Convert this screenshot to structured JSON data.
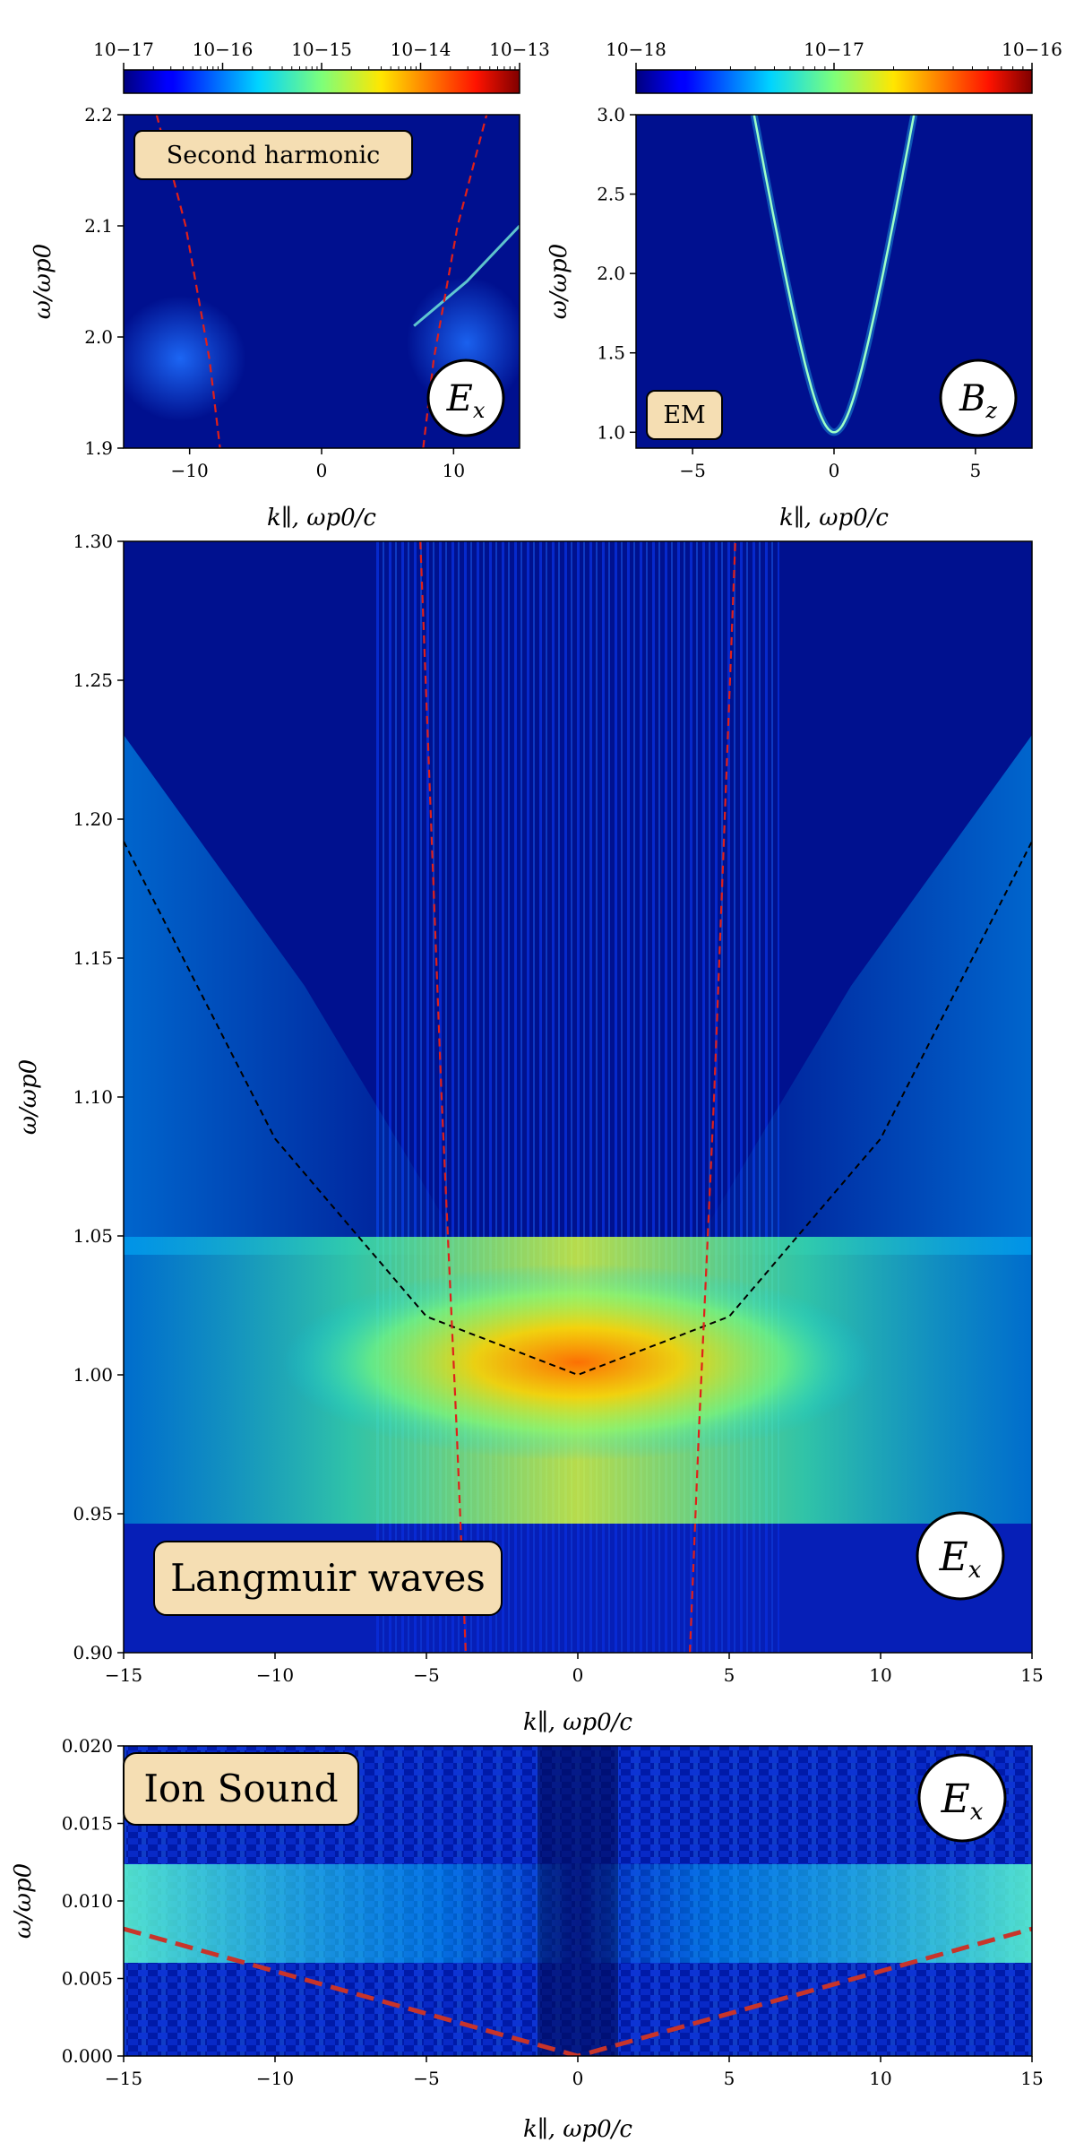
{
  "chart_data": [
    {
      "id": "second-harmonic",
      "type": "heatmap",
      "label_box": "Second harmonic",
      "field_badge": "E",
      "field_badge_sub": "x",
      "xlabel": "k∥, ωp0/c",
      "ylabel": "ω/ωp0",
      "xlim": [
        -15,
        15
      ],
      "ylim": [
        1.9,
        2.2
      ],
      "xticks": [
        "−10",
        "0",
        "10"
      ],
      "xtick_values": [
        -10,
        0,
        10
      ],
      "yticks": [
        "1.9",
        "2.0",
        "2.1",
        "2.2"
      ],
      "ytick_values": [
        1.9,
        2.0,
        2.1,
        2.2
      ],
      "colorbar": {
        "ticks": [
          "10−17",
          "10−16",
          "10−15",
          "10−14",
          "10−13"
        ],
        "log_min": -17,
        "log_max": -13
      },
      "overlay_curves": [
        {
          "style": "red-dashed",
          "x": [
            -12.5,
            -10.3,
            -8.5,
            -7.7
          ],
          "y": [
            2.2,
            2.1,
            1.98,
            1.9
          ]
        },
        {
          "style": "red-dashed",
          "x": [
            7.7,
            8.5,
            10.3,
            12.5
          ],
          "y": [
            1.9,
            1.98,
            2.1,
            2.2
          ]
        }
      ]
    },
    {
      "id": "em",
      "type": "heatmap",
      "label_box": "EM",
      "field_badge": "B",
      "field_badge_sub": "z",
      "xlabel": "k∥, ωp0/c",
      "ylabel": "ω/ωp0",
      "xlim": [
        -7,
        7
      ],
      "ylim": [
        0.9,
        3.0
      ],
      "xticks": [
        "−5",
        "0",
        "5"
      ],
      "xtick_values": [
        -5,
        0,
        5
      ],
      "yticks": [
        "1.0",
        "1.5",
        "2.0",
        "2.5",
        "3.0"
      ],
      "ytick_values": [
        1.0,
        1.5,
        2.0,
        2.5,
        3.0
      ],
      "colorbar": {
        "ticks": [
          "10−18",
          "10−17",
          "10−16"
        ],
        "log_min": -18,
        "log_max": -16
      },
      "dispersion": "omega = sqrt(1 + k^2)"
    },
    {
      "id": "langmuir",
      "type": "heatmap",
      "label_box": "Langmuir waves",
      "field_badge": "E",
      "field_badge_sub": "x",
      "xlabel": "k∥, ωp0/c",
      "ylabel": "ω/ωp0",
      "xlim": [
        -15,
        15
      ],
      "ylim": [
        0.9,
        1.3
      ],
      "xticks": [
        "−15",
        "−10",
        "−5",
        "0",
        "5",
        "10",
        "15"
      ],
      "xtick_values": [
        -15,
        -10,
        -5,
        0,
        5,
        10,
        15
      ],
      "yticks": [
        "0.90",
        "0.95",
        "1.00",
        "1.05",
        "1.10",
        "1.15",
        "1.20",
        "1.25",
        "1.30"
      ],
      "ytick_values": [
        0.9,
        0.95,
        1.0,
        1.05,
        1.1,
        1.15,
        1.2,
        1.25,
        1.3
      ],
      "overlay_curves": [
        {
          "style": "black-dashed",
          "x": [
            -15,
            -10,
            -5,
            0,
            5,
            10,
            15
          ],
          "y": [
            1.192,
            1.085,
            1.021,
            1.0,
            1.021,
            1.085,
            1.192
          ]
        },
        {
          "style": "red-dashed",
          "x": [
            -5.2,
            -4.5,
            -4.0,
            -3.7
          ],
          "y": [
            1.3,
            1.1,
            0.98,
            0.9
          ]
        },
        {
          "style": "red-dashed",
          "x": [
            3.7,
            4.0,
            4.5,
            5.2
          ],
          "y": [
            0.9,
            0.98,
            1.1,
            1.3
          ]
        }
      ]
    },
    {
      "id": "ion-sound",
      "type": "heatmap",
      "label_box": "Ion Sound",
      "field_badge": "E",
      "field_badge_sub": "x",
      "xlabel": "k∥, ωp0/c",
      "ylabel": "ω/ωp0",
      "xlim": [
        -15,
        15
      ],
      "ylim": [
        0.0,
        0.02
      ],
      "xticks": [
        "−15",
        "−10",
        "−5",
        "0",
        "5",
        "10",
        "15"
      ],
      "xtick_values": [
        -15,
        -10,
        -5,
        0,
        5,
        10,
        15
      ],
      "yticks": [
        "0.000",
        "0.005",
        "0.010",
        "0.015",
        "0.020"
      ],
      "ytick_values": [
        0.0,
        0.005,
        0.01,
        0.015,
        0.02
      ],
      "overlay_curves": [
        {
          "style": "red-dashed-thick",
          "x": [
            -15,
            0,
            15
          ],
          "y": [
            0.0082,
            0.0,
            0.0082
          ]
        }
      ]
    }
  ]
}
